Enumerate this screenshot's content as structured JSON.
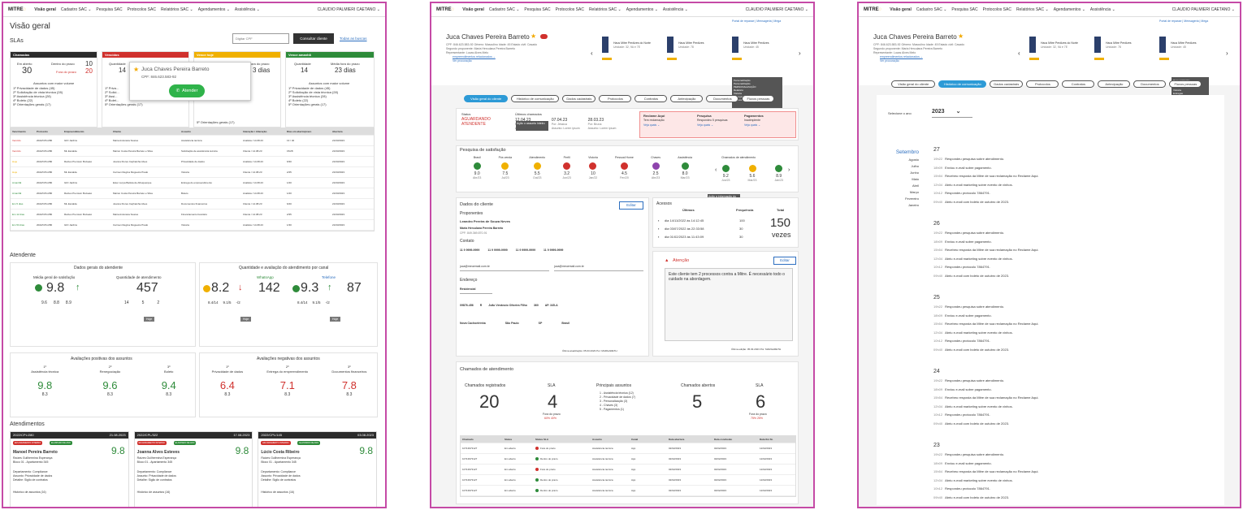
{
  "nav": {
    "logo": "MITRE",
    "items": [
      "Visão geral",
      "Cadastro SAC ⌄",
      "Pesquisa SAC",
      "Protocolos SAC",
      "Relatórios SAC ⌄",
      "Agendamentos ⌄",
      "Assistência ⌄"
    ],
    "user": "CLAUDIO PALMIERI CAETANO ⌄"
  },
  "overview": {
    "title": "Visão geral",
    "slas_title": "SLAs",
    "cpf_placeholder": "Digitar CPF",
    "consult_button": "Consultar cliente",
    "search_all": "Todas as buscas",
    "sla_cards": [
      {
        "header": "Chamadas",
        "color": "black",
        "l1": "Em aberto",
        "v1": "30",
        "l2": "Dentro do prazo",
        "v2": "10",
        "l3": "Fora do prazo",
        "v3": "20",
        "sub": "Assuntos com maior volume",
        "items": [
          "1º Privacidade de dados (45)",
          "2º Solicitação de vista técnica (28)",
          "3º Assistência técnica (28)",
          "4º Boleto (22)",
          "5º Orientações gerais (17)"
        ]
      },
      {
        "header": "Vencidos",
        "color": "red",
        "l1": "Quantidade",
        "v1": "14",
        "sub": "",
        "items": [
          "1º Priva...",
          "2º Solici...",
          "3º Assi...",
          "4º Bolet...",
          "5º Orientações gerais (17)"
        ]
      },
      {
        "header": "Vence hoje",
        "color": "yellow",
        "l1": "",
        "v1": "",
        "l2": "ora do prazo",
        "v2": "3 dias",
        "items": [
          "",
          "",
          "",
          "",
          "5º Orientações gerais (17)"
        ]
      },
      {
        "header": "Vence amanhã",
        "color": "green",
        "l1": "Quantidade",
        "v1": "14",
        "l2": "Média fora do prazo",
        "v2": "23 dias",
        "sub": "Assuntos com maior volume",
        "items": [
          "1º Privacidade de dados (45)",
          "2º Solicitação de vista técnica (28)",
          "3º Assistência técnica (28)",
          "4º Boleto (22)",
          "5º Orientações gerais (17)"
        ]
      }
    ],
    "popup": {
      "name": "Juca Chaves Pereira Barreto",
      "cpf": "CPF: 846.623.583-92",
      "button": "Atender"
    },
    "table_headers": [
      "Vencimento",
      "Protocolo",
      "Empreendimento",
      "Cliente",
      "Assunto",
      "Interação / Alteração",
      "Dias em aberto/prazo",
      "Abertura"
    ],
    "table_rows": [
      [
        "Vencido",
        "2022/CPL/280",
        "GIO Jardins",
        "Maria Antonieta Soares",
        "Assistência técnica",
        "Analista / 14.08.23",
        "13 / 40",
        "21/03/2023"
      ],
      [
        "Vencido",
        "2022/CPL/280",
        "ML Escalda",
        "Marion Costa Pereira Barreto e Silva",
        "Solicitação de assistência técnica",
        "Cliente / 14.08.23",
        "15/28",
        "21/03/2023"
      ],
      [
        "Hoje",
        "2022/CPL/280",
        "Raízes Premium Buzaeté",
        "Joanna Flores Caçhainha Alves",
        "Privacidade de dados",
        "Analista / 14.08.23",
        "6/30",
        "21/03/2023"
      ],
      [
        "Hoje",
        "2022/CPL/280",
        "ML Escalda",
        "Carmen Regina Mogueira Prado",
        "Vistoria",
        "Cliente / 14.08.23",
        "2/45",
        "21/03/2023"
      ],
      [
        "Amanhã",
        "2022/CPL/280",
        "GIO Jardins",
        "Ester Lurpa Batista de Albuquerque",
        "Entrega do empreendimento",
        "Analista / 14.08.23",
        "1/20",
        "21/03/2023"
      ],
      [
        "Amanhã",
        "2022/CPL/280",
        "Raízes Premium Buzaeté",
        "Marion Costa Pereira Barreto e Silva",
        "Boleto",
        "Analista / 14.08.23",
        "1/20",
        "21/03/2023"
      ],
      [
        "Em 5 dias",
        "2022/CPL/280",
        "ML Escalda",
        "Joanna Flores Caçhainha Alves",
        "Documentos financeiros",
        "Cliente / 14.08.23",
        "6/40",
        "21/03/2023"
      ],
      [
        "Em 12 dias",
        "2022/CPL/280",
        "Raízes Premium Buzaeté",
        "Maria Antonieta Soares",
        "Financiamento bancário",
        "Cliente / 14.08.23",
        "2/35",
        "21/03/2023"
      ],
      [
        "Em 53 dias",
        "2022/CPL/280",
        "GIO Jardins",
        "Carmen Regina Mogueira Prado",
        "Vistoria",
        "Analista / 14.08.23",
        "1/30",
        "21/03/2023"
      ]
    ],
    "atendente_title": "Atendente",
    "dados_gerais": {
      "title": "Dados gerais do atendente",
      "col1": "Média geral de satisfação",
      "col2": "Quantidade de atendimento",
      "score": "9.8",
      "qty": "457",
      "small": [
        "9.6",
        "8.8",
        "8.9"
      ],
      "qsmall": [
        "14",
        "5",
        "2"
      ],
      "hoje": "Hoje"
    },
    "canal": {
      "title": "Quantidade e avaliação do atendimento por canal",
      "c1": "WhatsApp",
      "c2": "Telefone",
      "s1": "8.2",
      "q1": "142",
      "s2": "9.3",
      "q2": "87",
      "small1": [
        "8.4/14",
        "9.1/5",
        "-/2"
      ],
      "small2": [
        "8.4/14",
        "9.1/5",
        "-/2"
      ],
      "hoje": "Hoje"
    },
    "positivas": {
      "title": "Avaliações positivas dos assuntos",
      "items": [
        {
          "rank": "1º",
          "name": "Assistência técnica",
          "v": "9.8",
          "s": "8.3"
        },
        {
          "rank": "2º",
          "name": "Renegociação",
          "v": "9.6",
          "s": "8.3"
        },
        {
          "rank": "3º",
          "name": "Boleto",
          "v": "9.4",
          "s": "8.3"
        }
      ]
    },
    "negativas": {
      "title": "Avaliações negativas dos assuntos",
      "items": [
        {
          "rank": "1º",
          "name": "Privacidade de dados",
          "v": "6.4",
          "s": "8.3"
        },
        {
          "rank": "2º",
          "name": "Entrega do empreendimento",
          "v": "7.1",
          "s": "8.3"
        },
        {
          "rank": "3º",
          "name": "Documentos financeiros",
          "v": "7.8",
          "s": "8.3"
        }
      ]
    },
    "atendimentos_title": "Atendimentos",
    "atend_cards": [
      {
        "id": "2022/CPL/280",
        "date": "21.08.2023",
        "badge1": "EM ANDAMENTO INTERNO",
        "badge2": "ELASHADO DE ANO",
        "score": "9.8",
        "name": "Manoel Pereira Barreto",
        "l1": "Raízes Guilhermina Esperança",
        "l2": "Bloco 01 - Apartamento 345",
        "dep": "Departamento: Compliance",
        "ass": "Assunto: Privacidade de dados",
        "det": "Detalhe: Sigilo de contratos",
        "hist": "Histórico de assuntos (16)"
      },
      {
        "id": "2022/CPL/322",
        "date": "17.08.2023",
        "badge1": "EM ANDAMENTO INTERNO",
        "badge2": "ELASHADO DE ANO",
        "score": "9.8",
        "name": "Joanna Alves Esteves",
        "l1": "Raízes Guilhermina Esperança",
        "l2": "Bloco 01 - Apartamento 345",
        "dep": "Departamento: Compliance",
        "ass": "Assunto: Privacidade de dados",
        "det": "Detalhe: Sigilo de contratos",
        "hist": "Histórico de assuntos (16)"
      },
      {
        "id": "2022/CPL/145",
        "date": "03.08.2023",
        "badge1": "EM ANDAMENTO INTERNO",
        "badge2": "ELASHADO DE ANO",
        "score": "9.8",
        "name": "Lúcio Costa Ribeiro",
        "l1": "Raízes Guilhermina Esperança",
        "l2": "Bloco 01 - Apartamento 345",
        "dep": "Departamento: Compliance",
        "ass": "Assunto: Privacidade de dados",
        "det": "Detalhe: Sigilo de contratos",
        "hist": "Histórico de assuntos (16)"
      }
    ]
  },
  "client": {
    "top_links": "Portal de repasse | Mensageria | Mega",
    "name": "Juca Chaves Pereira Barreto",
    "cpf_line": "CPF: 846.623.583-92   Gênero: Masculino   Idade: 45   Estado civil: Casado",
    "seg": "Segundo proponente: Maria Herculana Pereira Barreto",
    "rep": "Representante: Lucas Alves Melo",
    "link1": "empreendimentos relacionados ⌄",
    "link2": "Ver procuração",
    "props": [
      {
        "name": "Haus Mitre Perdizes do Norte",
        "unit": "Unidade: 32, 9A e 7E"
      },
      {
        "name": "Haus Mitre Perdizes",
        "unit": "Unidade: 78"
      },
      {
        "name": "Haus Mitre Perdizes",
        "unit": "Unidade: 45"
      }
    ],
    "tabs": [
      "Visão geral do cliente",
      "Histórico de comunicação",
      "Dados cadastrais",
      "Protocolos",
      "Contratos",
      "Antecipação",
      "Documentos",
      "Fluxos pessoas"
    ],
    "status_label": "Status",
    "status_value": "AGUARDANDO ATENDENTE",
    "ult_label": "Últimos chamados",
    "ult": [
      {
        "d": "12.04.23",
        "p": "Por: Margarete",
        "a": "Assunto: Lorem ipsum"
      },
      {
        "d": "07.04.23",
        "p": "Por: Jéssica",
        "a": "Assunto: Lorem ipsum"
      },
      {
        "d": "28.03.23",
        "p": "Por: Bruna",
        "a": "Assunto: Lorem ipsum"
      }
    ],
    "reclame": {
      "t": "Reclame Aqui",
      "s": "Tem reclamação",
      "l": "Veja quais ⌄"
    },
    "pesquisa": {
      "t": "Pesquisa",
      "s": "Respondeu 5 pesquisas",
      "l": "Veja quais ⌄"
    },
    "pagamentos": {
      "t": "Pagamentos",
      "s": "Inadimplente",
      "l": "Veja quais ⌄"
    },
    "tooltip": "Ação o assunto inteiro",
    "pesq_title": "Pesquisa de satisfação",
    "pesq": [
      {
        "l": "Brasil",
        "v": "9.0",
        "d": "Abr/23",
        "c": "green"
      },
      {
        "l": "Pós venda",
        "v": "7.5",
        "d": "Jul/23",
        "c": "yellow"
      },
      {
        "l": "Atendimento",
        "v": "5.5",
        "d": "Out/23",
        "c": "yellow"
      },
      {
        "l": "Perfil",
        "v": "3.2",
        "d": "Jun/23",
        "c": "red"
      },
      {
        "l": "Vistoria",
        "v": "10",
        "d": "Jan/22",
        "c": "red"
      },
      {
        "l": "Pessoal Home",
        "v": "4.5",
        "d": "Fev/20",
        "c": "red"
      },
      {
        "l": "Chaves",
        "v": "2.5",
        "d": "Abr/23",
        "c": "purple"
      },
      {
        "l": "Assistência",
        "v": "8.0",
        "d": "Mar/23",
        "c": "green"
      }
    ],
    "chamados_at_title": "Chamados de atendimento",
    "chamados_at": [
      {
        "v": "9.2",
        "d": "Jun/23",
        "c": "green"
      },
      {
        "v": "5.6",
        "d": "Mar/23",
        "c": "yellow"
      },
      {
        "v": "8.9",
        "d": "Jan/23",
        "c": "green"
      }
    ],
    "tooltip2": "Ação a informação do assunto.",
    "dados_title": "Dados do cliente",
    "editar": "Editar",
    "proponentes": "Proponentes",
    "prop_name": "Leandro Pereira de Souza Neves",
    "prop2": "Maria Herculana Pereira Barreto",
    "cpf_small": "CPF: 849.369.870-91",
    "contato": "Contato",
    "phones": [
      "11 9 9999-9999",
      "11 9 9999-9999",
      "11 9 9999-9999",
      "11 9 9999-9999"
    ],
    "emails": [
      "juca@meuemail.com.br",
      "juca@meuemail.com.br"
    ],
    "endereco": "Endereço",
    "tipo": "Residencial",
    "cep": "09876-456",
    "sigla": "R",
    "log": "João Venâncio Oliveira Filho",
    "num": "360",
    "comp": "AP. 345-A",
    "bairro": "Nova Cachoeirinha",
    "cidade": "São Paulo",
    "uf": "SP",
    "pais": "Brasil",
    "ultima_at": "Última atualização: 05.03.2023   Por: MARGARETH",
    "acessos_title": "Acessos",
    "acessos_cols": [
      "Últimos",
      "Frequência",
      "Total"
    ],
    "acessos": [
      {
        "d": "dia 14/11/2022 às 14:12:45",
        "f": "100"
      },
      {
        "d": "dia 03/07/2022 às 22:33:58",
        "f": "30"
      },
      {
        "d": "dia 01/02/2023 às 11:43:09",
        "f": "30"
      }
    ],
    "acessos_total": "150",
    "acessos_unit": "vezes",
    "atencao_title": "Atenção",
    "atencao_text": "Este cliente tem 2 processos contra a Mitre. É necessário todo o cuidado na abordagem.",
    "atencao_edit": "Editar",
    "atencao_foot": "Última edição: 05.03.2023   Por: MARGARETH",
    "chamados_title": "Chamados de atendimento",
    "reg_label": "Chamados registrados",
    "reg": "20",
    "sla_label": "SLA",
    "sla": "4",
    "sla_sub": "Fora do prazo",
    "sla_pct": "60%  40%",
    "princ_label": "Principais assuntos",
    "princ": [
      "1 - Assistência técnica (12)",
      "2 - Privacidade de dados (7)",
      "3 - Personalização (3)",
      "4 - Chaves (3)",
      "5 - Pagamentos (1)"
    ],
    "abertos_label": "Chamados abertos",
    "abertos": "5",
    "sla2_label": "SLA",
    "sla2": "6",
    "sla2_sub": "Fora do prazo",
    "sla2_pct": "75%  25%",
    "ch_headers": [
      "Chamado",
      "Status",
      "Status SLA",
      "Assunto",
      "Canal",
      "Data abertura",
      "Data conclusão",
      "Data fim SL"
    ],
    "ch_rows": [
      [
        "10713973127",
        "Em aberto",
        "Fora do prazo",
        "Assistência técnica",
        "App",
        "02/02/2023",
        "02/02/2023",
        "12/02/2023",
        "red"
      ],
      [
        "10713973127",
        "Em aberto",
        "Dentro do prazo",
        "Assistência técnica",
        "App",
        "02/02/2023",
        "02/02/2023",
        "12/02/2023",
        "green"
      ],
      [
        "10713973127",
        "Em aberto",
        "Fora do prazo",
        "Assistência técnica",
        "App",
        "02/02/2023",
        "02/02/2023",
        "12/02/2023",
        "red"
      ],
      [
        "10713973127",
        "Em aberto",
        "Dentro do prazo",
        "Assistência técnica",
        "App",
        "02/02/2023",
        "02/02/2023",
        "12/02/2023",
        "green"
      ],
      [
        "10713973127",
        "Em aberto",
        "Dentro do prazo",
        "Assistência técnica",
        "App",
        "02/02/2023",
        "02/02/2023",
        "12/02/2023",
        "green"
      ]
    ]
  },
  "timeline": {
    "tabs": [
      "Visão geral do cliente",
      "Histórico de comunicação",
      "Dados cadastrais",
      "Protocolos",
      "Contratos",
      "Antecipação",
      "Documentos",
      "Fluxos pessoas"
    ],
    "year_label": "Selecione o ano",
    "year": "2023",
    "months": [
      "Setembro",
      "Agosto",
      "Julho",
      "Junho",
      "Maio",
      "Abril",
      "Março",
      "Fevereiro",
      "Janeiro"
    ],
    "days": [
      {
        "day": "27",
        "entries": [
          [
            "19h22",
            "Respondeu pesquisa sobre atendimento."
          ],
          [
            "18h09",
            "Enviou e-mail sobre pagamento."
          ],
          [
            "15h54",
            "Recebeu resposta da Mitre de sua reclamação no Reclame Aqui."
          ],
          [
            "12h34",
            "Abriu e-mail marketing sobre evento de vinhos."
          ],
          [
            "10h12",
            "Respondeu protocolo 7864791."
          ],
          [
            "09h40",
            "Abriu e-mail com boleto de outubro de 2023."
          ]
        ]
      },
      {
        "day": "26",
        "entries": [
          [
            "19h22",
            "Respondeu pesquisa sobre atendimento."
          ],
          [
            "18h09",
            "Enviou e-mail sobre pagamento."
          ],
          [
            "15h54",
            "Recebeu resposta da Mitre de sua reclamação no Reclame Aqui."
          ],
          [
            "12h34",
            "Abriu e-mail marketing sobre evento de vinhos."
          ],
          [
            "10h12",
            "Respondeu protocolo 7864791."
          ],
          [
            "09h40",
            "Abriu e-mail com boleto de outubro de 2023."
          ]
        ]
      },
      {
        "day": "25",
        "entries": [
          [
            "19h22",
            "Respondeu pesquisa sobre atendimento."
          ],
          [
            "18h09",
            "Enviou e-mail sobre pagamento."
          ],
          [
            "15h54",
            "Recebeu resposta da Mitre de sua reclamação no Reclame Aqui."
          ],
          [
            "12h34",
            "Abriu e-mail marketing sobre evento de vinhos."
          ],
          [
            "10h12",
            "Respondeu protocolo 7864791."
          ],
          [
            "09h40",
            "Abriu e-mail com boleto de outubro de 2023."
          ]
        ]
      },
      {
        "day": "24",
        "entries": [
          [
            "19h22",
            "Respondeu pesquisa sobre atendimento."
          ],
          [
            "18h09",
            "Enviou e-mail sobre pagamento."
          ],
          [
            "15h54",
            "Recebeu resposta da Mitre de sua reclamação no Reclame Aqui."
          ],
          [
            "12h34",
            "Abriu e-mail marketing sobre evento de vinhos."
          ],
          [
            "10h12",
            "Respondeu protocolo 7864791."
          ],
          [
            "09h40",
            "Abriu e-mail com boleto de outubro de 2023."
          ]
        ]
      },
      {
        "day": "23",
        "entries": [
          [
            "19h22",
            "Respondeu pesquisa sobre atendimento."
          ],
          [
            "18h09",
            "Enviou e-mail sobre pagamento."
          ],
          [
            "15h54",
            "Recebeu resposta da Mitre de sua reclamação no Reclame Aqui."
          ],
          [
            "12h34",
            "Abriu e-mail marketing sobre evento de vinhos."
          ],
          [
            "10h12",
            "Respondeu protocolo 7864791."
          ],
          [
            "09h40",
            "Abriu e-mail com boleto de outubro de 2023."
          ]
        ]
      }
    ]
  }
}
